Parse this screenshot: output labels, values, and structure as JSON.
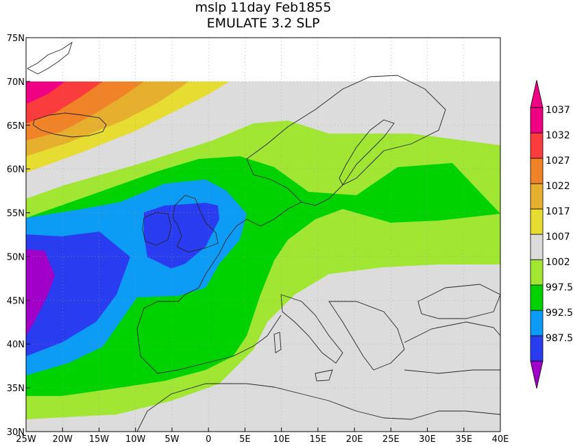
{
  "title": {
    "line1": "mslp 11day Feb1855",
    "line2": "EMULATE 3.2 SLP"
  },
  "map": {
    "lon_range": [
      -25,
      40
    ],
    "lat_range": [
      30,
      75
    ],
    "data_lat_max": 70,
    "missing_color": "#d8d8d8",
    "lon_labels": [
      "25W",
      "20W",
      "15W",
      "10W",
      "5W",
      "0",
      "5E",
      "10E",
      "15E",
      "20E",
      "25E",
      "30E",
      "35E",
      "40E"
    ],
    "lat_labels": [
      "75N",
      "70N",
      "65N",
      "60N",
      "55N",
      "50N",
      "45N",
      "40N",
      "35N",
      "30N"
    ]
  },
  "colorbar": {
    "levels": [
      {
        "label": "987.5",
        "color": "#2a3cf0"
      },
      {
        "label": "992.5",
        "color": "#0c9cf6"
      },
      {
        "label": "997.5",
        "color": "#00d200"
      },
      {
        "label": "1002",
        "color": "#a0e632"
      },
      {
        "label": "1007",
        "color": "#dcdcdc"
      },
      {
        "label": "1017",
        "color": "#e6dc32"
      },
      {
        "label": "1022",
        "color": "#e6af2d"
      },
      {
        "label": "1027",
        "color": "#f08228"
      },
      {
        "label": "1032",
        "color": "#fa3c3c"
      },
      {
        "label": "1037",
        "color": "#f00082"
      }
    ],
    "under_color": "#a000c8",
    "over_color": "#f00082"
  }
}
